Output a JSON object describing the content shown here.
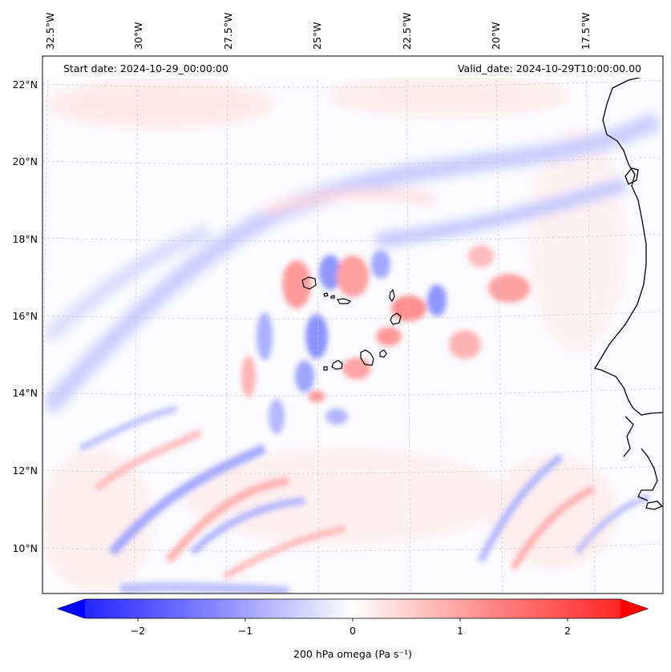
{
  "header": {
    "start_date": "Start date: 2024-10-29_00:00:00",
    "valid_date": "Valid_date: 2024-10-29T10:00:00.00"
  },
  "map": {
    "lon_labels": [
      "32.5°W",
      "30°W",
      "27.5°W",
      "25°W",
      "22.5°W",
      "20°W",
      "17.5°W"
    ],
    "lat_labels": [
      "22°N",
      "20°N",
      "18°N",
      "16°N",
      "14°N",
      "12°N",
      "10°N"
    ],
    "grid_color": "#c8c8c8",
    "coast_color": "#000000"
  },
  "colorbar": {
    "ticks": [
      "−2",
      "−1",
      "0",
      "1",
      "2"
    ],
    "label": "200 hPa omega (Pa s⁻¹)",
    "min_color": "#0000ff",
    "mid_color": "#ffffff",
    "max_color": "#ff0000"
  }
}
